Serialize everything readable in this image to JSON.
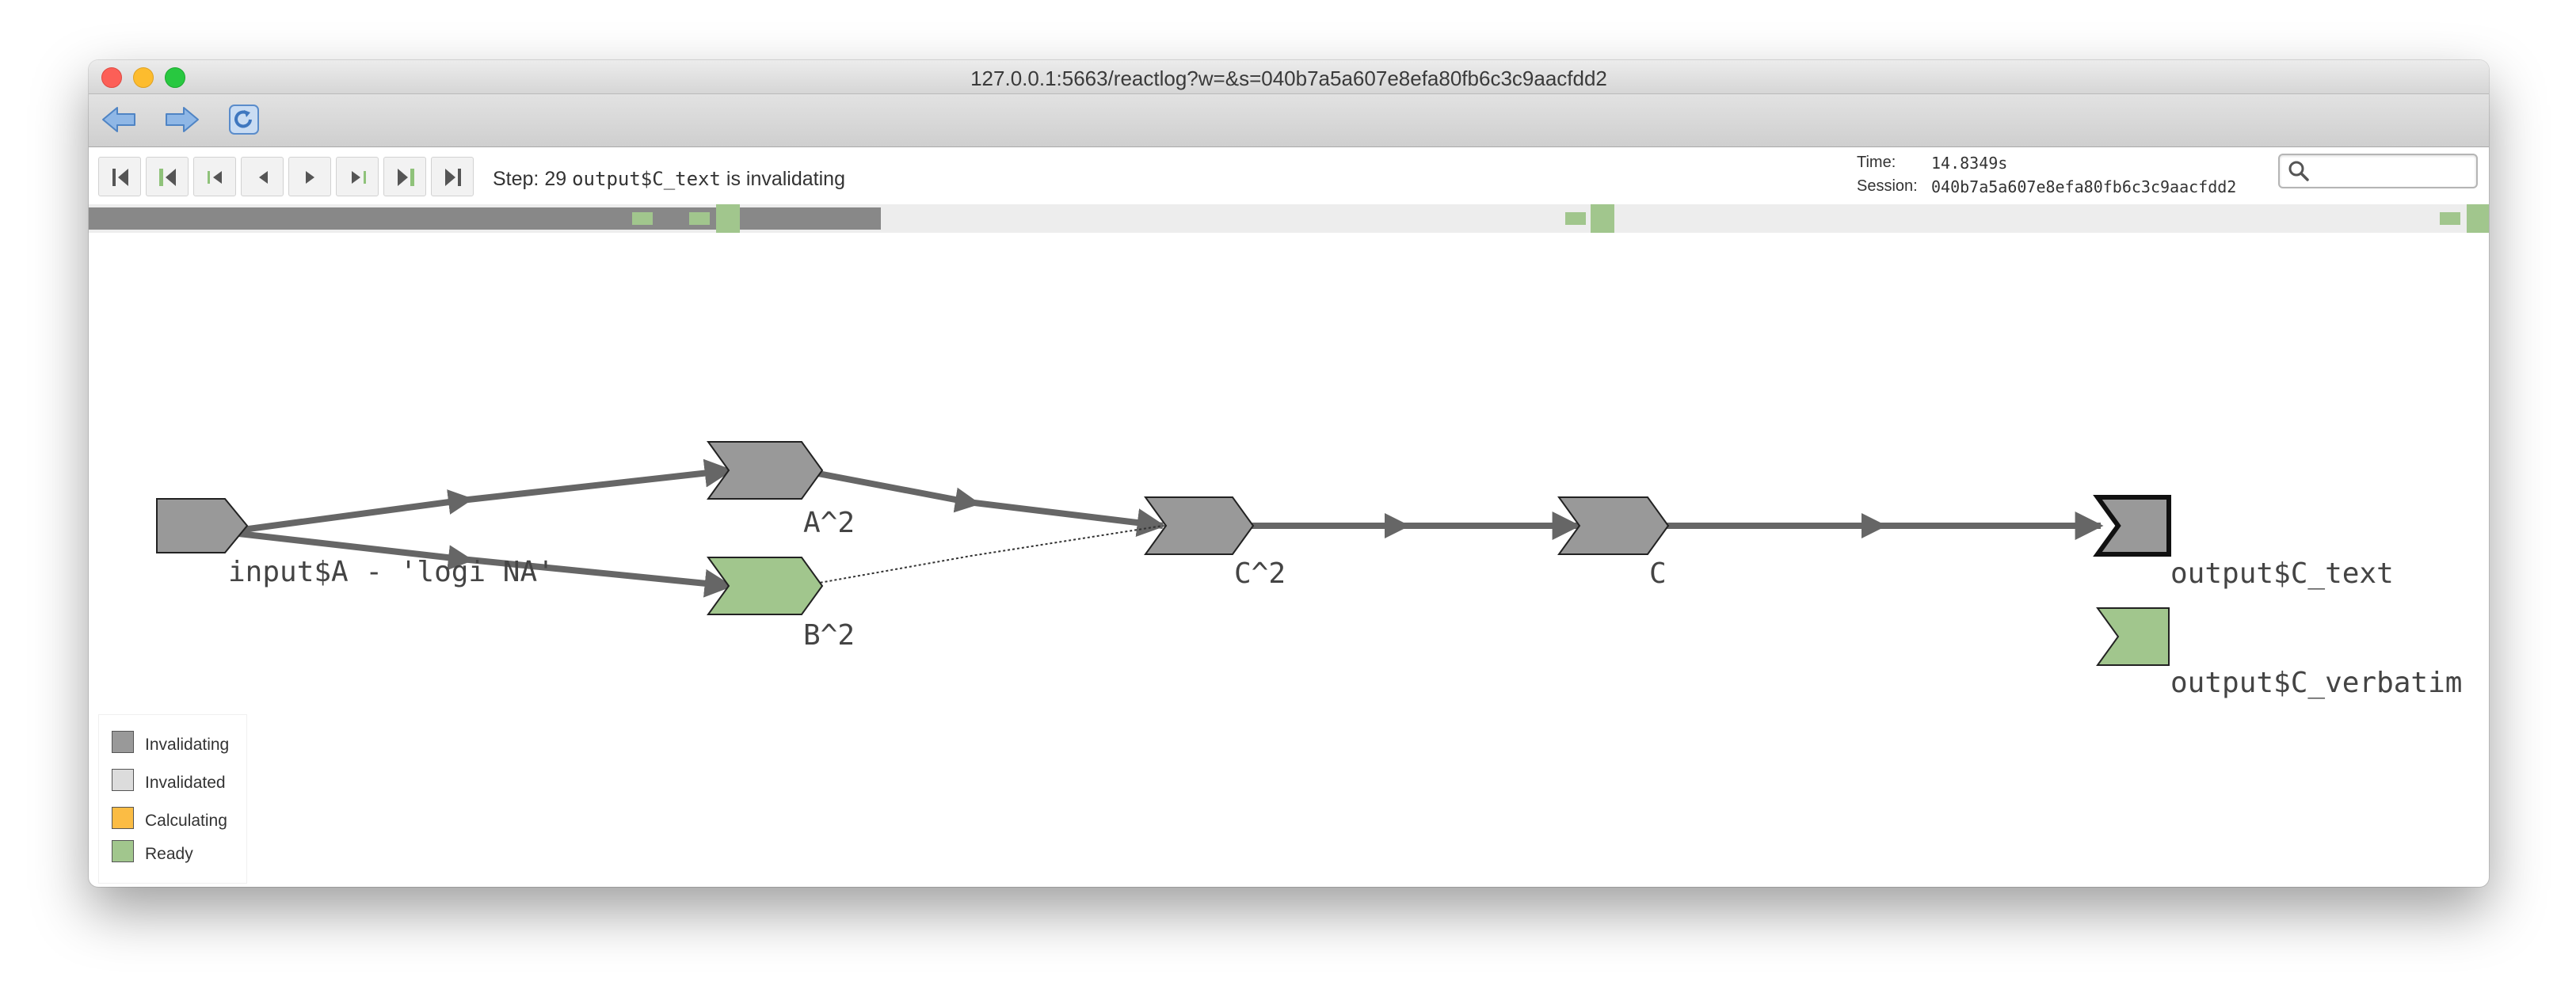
{
  "window": {
    "url": "127.0.0.1:5663/reactlog?w=&s=040b7a5a607e8efa80fb6c3c9aacfdd2"
  },
  "toolbar": {
    "icons": [
      "back-arrow-icon",
      "forward-arrow-icon",
      "refresh-icon"
    ]
  },
  "controls": {
    "buttons": [
      {
        "name": "first-step",
        "icon": "skip-to-start-icon"
      },
      {
        "name": "prev-idle",
        "icon": "prev-idle-icon"
      },
      {
        "name": "prev-cycle",
        "icon": "prev-cycle-icon"
      },
      {
        "name": "prev-step",
        "icon": "prev-step-icon"
      },
      {
        "name": "next-step",
        "icon": "next-step-icon"
      },
      {
        "name": "next-cycle",
        "icon": "next-cycle-icon"
      },
      {
        "name": "next-idle",
        "icon": "next-idle-icon"
      },
      {
        "name": "last-step",
        "icon": "skip-to-end-icon"
      }
    ],
    "step_prefix": "Step: 29",
    "step_id": "output$C_text",
    "step_suffix": "is invalidating",
    "time_label": "Time:",
    "time_value": "14.8349s",
    "session_label": "Session:",
    "session_value": "040b7a5a607e8efa80fb6c3c9aacfdd2",
    "search_placeholder": ""
  },
  "timeline": {
    "progress_fraction": 0.33
  },
  "graph": {
    "nodes": [
      {
        "label": "input$A - 'logi NA'",
        "status": "Invalidating"
      },
      {
        "label": "A^2",
        "status": "Invalidating"
      },
      {
        "label": "B^2",
        "status": "Ready"
      },
      {
        "label": "C^2",
        "status": "Invalidating"
      },
      {
        "label": "C",
        "status": "Invalidating"
      },
      {
        "label": "output$C_text",
        "status": "Invalidating"
      },
      {
        "label": "output$C_verbatim",
        "status": "Ready"
      }
    ]
  },
  "legend": {
    "items": [
      {
        "label": "Invalidating",
        "color": "#999999"
      },
      {
        "label": "Invalidated",
        "color": "#dcdcdc"
      },
      {
        "label": "Calculating",
        "color": "#fbbc44"
      },
      {
        "label": "Ready",
        "color": "#a1c68d"
      }
    ]
  },
  "colors": {
    "invalidating": "#999999",
    "ready": "#a1c68d",
    "edge": "#666666",
    "timeline_progress": "#888888",
    "timeline_marker": "#a1c68d"
  }
}
